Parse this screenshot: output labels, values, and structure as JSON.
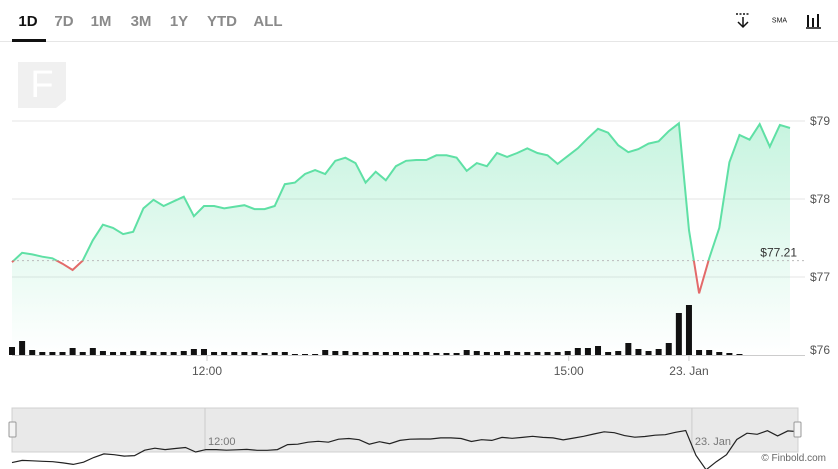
{
  "ui": {
    "ranges": [
      "1D",
      "7D",
      "1M",
      "3M",
      "1Y",
      "YTD",
      "ALL"
    ],
    "active_range": 0,
    "indicator": "SMA",
    "logo": "F",
    "credit": "© Finbold.com"
  },
  "chart_data": {
    "type": "line",
    "series": [
      {
        "name": "Price",
        "color": "#5fe0a5",
        "negative_color": "#e36a6a",
        "values": [
          77.19,
          77.31,
          77.29,
          77.26,
          77.24,
          77.17,
          77.09,
          77.21,
          77.47,
          77.67,
          77.63,
          77.55,
          77.58,
          77.88,
          77.99,
          77.91,
          77.97,
          78.03,
          77.78,
          77.91,
          77.91,
          77.88,
          77.9,
          77.92,
          77.87,
          77.87,
          77.91,
          78.19,
          78.21,
          78.32,
          78.37,
          78.32,
          78.49,
          78.53,
          78.46,
          78.21,
          78.35,
          78.24,
          78.42,
          78.49,
          78.5,
          78.5,
          78.56,
          78.56,
          78.53,
          78.36,
          78.46,
          78.42,
          78.59,
          78.54,
          78.59,
          78.65,
          78.59,
          78.56,
          78.45,
          78.55,
          78.65,
          78.78,
          78.9,
          78.85,
          78.69,
          78.6,
          78.64,
          78.71,
          78.74,
          78.87,
          78.97,
          77.6,
          76.79,
          77.24,
          77.63,
          78.47,
          78.82,
          78.76,
          78.96,
          78.67,
          78.95,
          78.91
        ]
      },
      {
        "name": "Volume",
        "color": "#111111",
        "axis": "y2",
        "values": [
          8,
          14,
          5,
          3,
          3,
          3,
          7,
          3,
          7,
          4,
          3,
          3,
          4,
          4,
          3,
          3,
          3,
          4,
          6,
          6,
          3,
          3,
          3,
          3,
          3,
          2,
          3,
          3,
          1,
          1,
          1,
          5,
          4,
          4,
          3,
          3,
          3,
          3,
          3,
          3,
          3,
          3,
          2,
          2,
          2,
          5,
          4,
          3,
          3,
          4,
          3,
          3,
          3,
          3,
          3,
          4,
          7,
          7,
          9,
          3,
          4,
          12,
          6,
          4,
          6,
          12,
          42,
          50,
          5,
          5,
          3,
          2,
          1,
          0,
          0,
          0,
          0,
          0
        ]
      }
    ],
    "reference": {
      "value": 77.21,
      "label": "$77.21"
    },
    "xlim": [
      0,
      77
    ],
    "xticks": [
      {
        "value": 19.3,
        "label": "12:00"
      },
      {
        "value": 55.1,
        "label": "15:00"
      },
      {
        "value": 67,
        "label": "23. Jan"
      }
    ],
    "ylim": [
      76,
      80
    ],
    "yticks": [
      {
        "value": 76,
        "label": "$76"
      },
      {
        "value": 77,
        "label": "$77"
      },
      {
        "value": 78,
        "label": "$78"
      },
      {
        "value": 79,
        "label": "$79"
      }
    ],
    "y2lim": [
      0,
      100
    ],
    "grid": true
  }
}
